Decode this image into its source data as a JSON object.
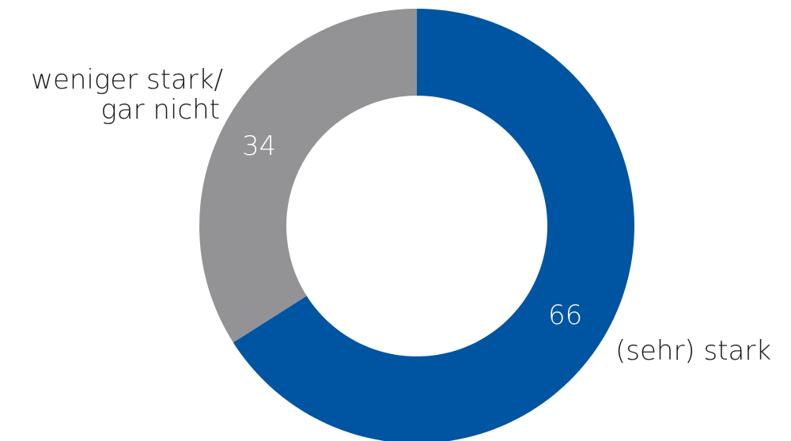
{
  "chart_data": {
    "type": "pie",
    "donut": true,
    "title": "",
    "slices": [
      {
        "label": "(sehr) stark",
        "value": 66,
        "value_label": "66",
        "color": "#0055a2"
      },
      {
        "label_lines": [
          "weniger stark/",
          "gar nicht"
        ],
        "value": 34,
        "value_label": "34",
        "color": "#939396"
      }
    ],
    "start": "top",
    "direction": "clockwise",
    "legend": "none"
  }
}
